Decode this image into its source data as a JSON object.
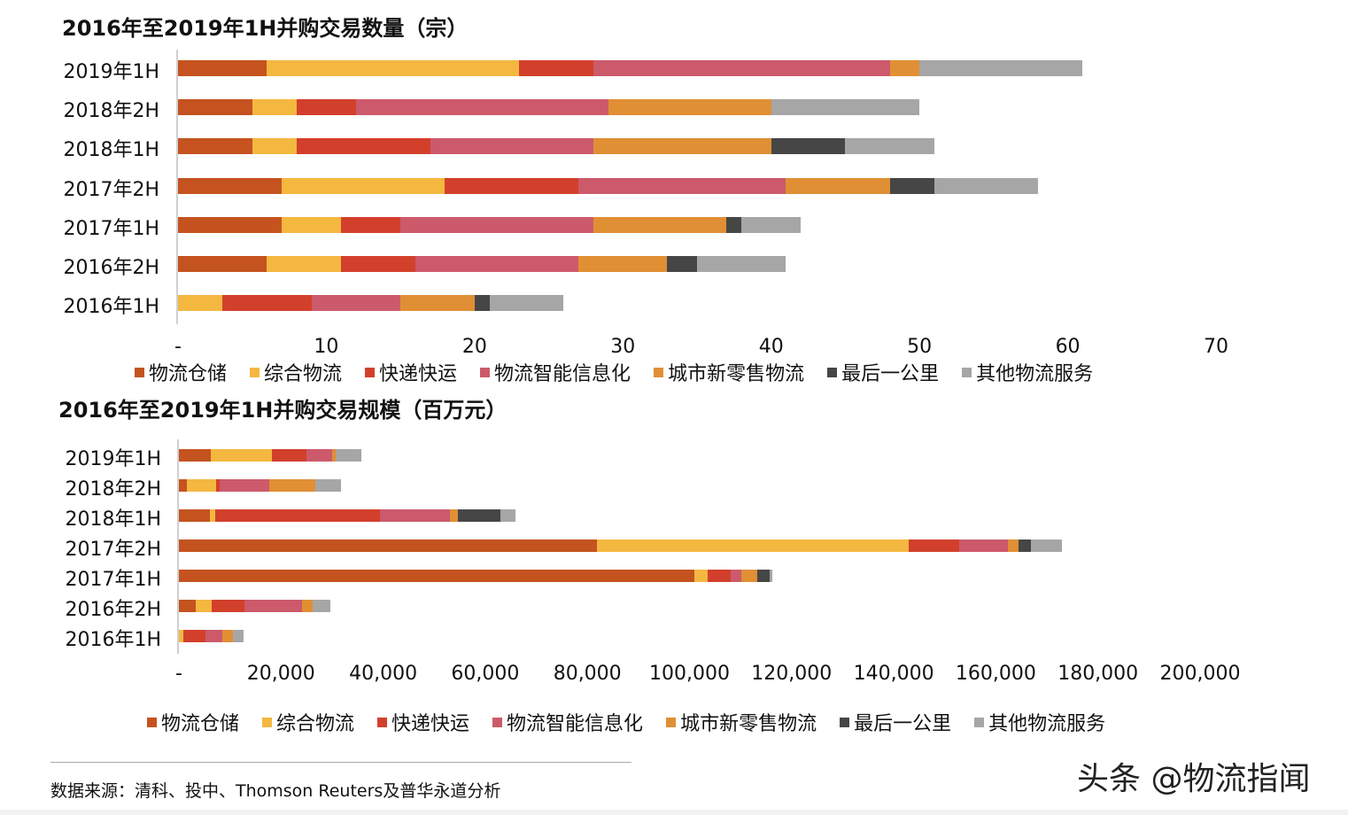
{
  "colors": {
    "物流仓储": "#c4531f",
    "综合物流": "#f4b740",
    "快递快运": "#d2402c",
    "物流智能信息化": "#cc5a6b",
    "城市新零售物流": "#e08f34",
    "最后一公里": "#464646",
    "其他物流服务": "#a6a6a6"
  },
  "legend": [
    "物流仓储",
    "综合物流",
    "快递快运",
    "物流智能信息化",
    "城市新零售物流",
    "最后一公里",
    "其他物流服务"
  ],
  "chart_data": [
    {
      "type": "bar",
      "orientation": "horizontal",
      "stacked": true,
      "title": "2016年至2019年1H并购交易数量（宗）",
      "xlabel": "",
      "ylabel": "",
      "xlim": [
        0,
        70
      ],
      "xticks": [
        "-",
        "10",
        "20",
        "30",
        "40",
        "50",
        "60",
        "70"
      ],
      "legend_position": "bottom",
      "grid": false,
      "categories": [
        "2019年1H",
        "2018年2H",
        "2018年1H",
        "2017年2H",
        "2017年1H",
        "2016年2H",
        "2016年1H"
      ],
      "series": [
        {
          "name": "物流仓储",
          "values": [
            6,
            5,
            5,
            7,
            7,
            6,
            0
          ]
        },
        {
          "name": "综合物流",
          "values": [
            17,
            3,
            3,
            11,
            4,
            5,
            3
          ]
        },
        {
          "name": "快递快运",
          "values": [
            5,
            4,
            9,
            9,
            4,
            5,
            6
          ]
        },
        {
          "name": "物流智能信息化",
          "values": [
            20,
            17,
            11,
            14,
            13,
            11,
            6
          ]
        },
        {
          "name": "城市新零售物流",
          "values": [
            2,
            11,
            12,
            7,
            9,
            6,
            5
          ]
        },
        {
          "name": "最后一公里",
          "values": [
            0,
            0,
            5,
            3,
            1,
            2,
            1
          ]
        },
        {
          "name": "其他物流服务",
          "values": [
            11,
            10,
            6,
            7,
            4,
            6,
            5
          ]
        }
      ]
    },
    {
      "type": "bar",
      "orientation": "horizontal",
      "stacked": true,
      "title": "2016年至2019年1H并购交易规模（百万元）",
      "xlabel": "",
      "ylabel": "",
      "xlim": [
        0,
        200000
      ],
      "xticks": [
        "-",
        "20,000",
        "40,000",
        "60,000",
        "80,000",
        "100,000",
        "120,000",
        "140,000",
        "160,000",
        "180,000",
        "200,000"
      ],
      "legend_position": "bottom",
      "grid": false,
      "categories": [
        "2019年1H",
        "2018年2H",
        "2018年1H",
        "2017年2H",
        "2017年1H",
        "2016年2H",
        "2016年1H"
      ],
      "series": [
        {
          "name": "物流仓储",
          "values": [
            6200,
            1600,
            6100,
            81900,
            101000,
            3300,
            0
          ]
        },
        {
          "name": "综合物流",
          "values": [
            12000,
            5700,
            1000,
            61100,
            2600,
            3100,
            900
          ]
        },
        {
          "name": "快递快运",
          "values": [
            6800,
            700,
            32300,
            9900,
            4500,
            6400,
            4300
          ]
        },
        {
          "name": "物流智能信息化",
          "values": [
            5000,
            9700,
            13700,
            9400,
            2100,
            11300,
            3300
          ]
        },
        {
          "name": "城市新零售物流",
          "values": [
            700,
            9000,
            1600,
            2200,
            3100,
            2100,
            2100
          ]
        },
        {
          "name": "最后一公里",
          "values": [
            0,
            0,
            8300,
            2300,
            2400,
            0,
            0
          ]
        },
        {
          "name": "其他物流服务",
          "values": [
            5000,
            5000,
            2900,
            6200,
            500,
            3500,
            2100
          ]
        }
      ]
    }
  ],
  "footer": {
    "source": "数据来源：清科、投中、Thomson Reuters及普华永道分析",
    "watermark": "头条 @物流指闻"
  }
}
